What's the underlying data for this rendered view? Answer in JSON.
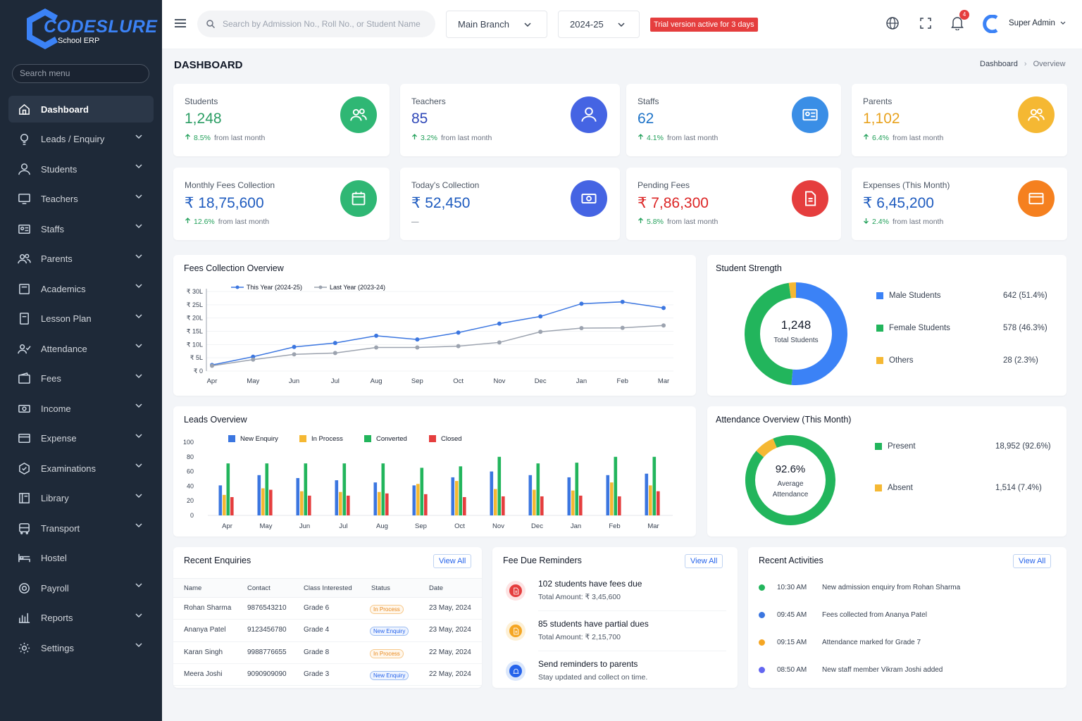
{
  "brand": {
    "name": "CODESLURE",
    "subtitle": "School ERP"
  },
  "sidebar": {
    "search_placeholder": "Search menu",
    "items": [
      {
        "label": "Dashboard",
        "icon": "home-icon",
        "active": true,
        "expandable": false
      },
      {
        "label": "Leads / Enquiry",
        "icon": "bulb-icon",
        "expandable": true
      },
      {
        "label": "Students",
        "icon": "user-icon",
        "expandable": true
      },
      {
        "label": "Teachers",
        "icon": "monitor-icon",
        "expandable": true
      },
      {
        "label": "Staffs",
        "icon": "id-card-icon",
        "expandable": true
      },
      {
        "label": "Parents",
        "icon": "users-icon",
        "expandable": true
      },
      {
        "label": "Academics",
        "icon": "book-icon",
        "expandable": true
      },
      {
        "label": "Lesson Plan",
        "icon": "notebook-icon",
        "expandable": true
      },
      {
        "label": "Attendance",
        "icon": "user-check-icon",
        "expandable": true
      },
      {
        "label": "Fees",
        "icon": "wallet-icon",
        "expandable": true
      },
      {
        "label": "Income",
        "icon": "cash-icon",
        "expandable": true
      },
      {
        "label": "Expense",
        "icon": "credit-card-icon",
        "expandable": true
      },
      {
        "label": "Examinations",
        "icon": "exam-icon",
        "expandable": true
      },
      {
        "label": "Library",
        "icon": "library-icon",
        "expandable": true
      },
      {
        "label": "Transport",
        "icon": "bus-icon",
        "expandable": true
      },
      {
        "label": "Hostel",
        "icon": "bed-icon",
        "expandable": false
      },
      {
        "label": "Payroll",
        "icon": "payroll-icon",
        "expandable": true
      },
      {
        "label": "Reports",
        "icon": "bar-chart-icon",
        "expandable": true
      },
      {
        "label": "Settings",
        "icon": "gear-icon",
        "expandable": true
      }
    ]
  },
  "topbar": {
    "search_placeholder": "Search by Admission No., Roll No., or Student Name",
    "branch": "Main Branch",
    "year": "2024-25",
    "trial": "Trial version active for 3 days",
    "notifications": "4",
    "user": "Super Admin"
  },
  "page": {
    "title": "DASHBOARD",
    "breadcrumb": [
      "Dashboard",
      "Overview"
    ]
  },
  "kpis": [
    {
      "label": "Students",
      "value": "1,248",
      "change": "8.5%",
      "change_text": "from last month",
      "dir": "up",
      "color": "#2a9d63",
      "circle": "#2fb774",
      "icon": "users-icon"
    },
    {
      "label": "Teachers",
      "value": "85",
      "change": "3.2%",
      "change_text": "from last month",
      "dir": "up",
      "color": "#2f48b8",
      "circle": "#4564e3",
      "icon": "user-icon"
    },
    {
      "label": "Staffs",
      "value": "62",
      "change": "4.1%",
      "change_text": "from last month",
      "dir": "up",
      "color": "#1e73c8",
      "circle": "#3a8ee6",
      "icon": "id-card-icon"
    },
    {
      "label": "Parents",
      "value": "1,102",
      "change": "6.4%",
      "change_text": "from last month",
      "dir": "up",
      "color": "#e8a21e",
      "circle": "#f5b833",
      "icon": "users-icon"
    },
    {
      "label": "Monthly Fees Collection",
      "value": "₹ 18,75,600",
      "change": "12.6%",
      "change_text": "from last month",
      "dir": "up",
      "color": "#1e5bbf",
      "circle": "#2fb774",
      "icon": "calendar-icon"
    },
    {
      "label": "Today's Collection",
      "value": "₹ 52,450",
      "change": "",
      "change_text": "—",
      "dir": "none",
      "color": "#1e5bbf",
      "circle": "#4564e3",
      "icon": "cash-icon"
    },
    {
      "label": "Pending Fees",
      "value": "₹ 7,86,300",
      "change": "5.8%",
      "change_text": "from last month",
      "dir": "up",
      "color": "#dc2626",
      "circle": "#e53e3e",
      "icon": "document-icon"
    },
    {
      "label": "Expenses (This Month)",
      "value": "₹ 6,45,200",
      "change": "2.4%",
      "change_text": "from last month",
      "dir": "down",
      "color": "#1e5bbf",
      "circle": "#f5801f",
      "icon": "credit-card-icon"
    }
  ],
  "fees_chart": {
    "title": "Fees Collection Overview",
    "chart_data": {
      "type": "line",
      "x": [
        "Apr",
        "May",
        "Jun",
        "Jul",
        "Aug",
        "Sep",
        "Oct",
        "Nov",
        "Dec",
        "Jan",
        "Feb",
        "Mar"
      ],
      "yticks": [
        "₹ 0",
        "₹ 5L",
        "₹ 10L",
        "₹ 15L",
        "₹ 20L",
        "₹ 25L",
        "₹ 30L"
      ],
      "ylim": [
        0,
        30
      ],
      "series": [
        {
          "name": "This Year (2024-25)",
          "color": "#3b76e0",
          "values": [
            2.3,
            5.4,
            9.1,
            10.6,
            13.3,
            11.9,
            14.5,
            17.9,
            20.6,
            25.4,
            26.1,
            23.8
          ]
        },
        {
          "name": "Last Year (2023-24)",
          "color": "#9ca3af",
          "values": [
            2.0,
            4.3,
            6.3,
            6.8,
            8.9,
            8.9,
            9.4,
            10.8,
            14.8,
            16.2,
            16.3,
            17.2
          ]
        }
      ]
    }
  },
  "strength": {
    "title": "Student Strength",
    "total": "1,248",
    "total_label": "Total Students",
    "chart_data": {
      "type": "pie",
      "labels": [
        "Male Students",
        "Female Students",
        "Others"
      ],
      "values": [
        642,
        578,
        28
      ],
      "display": [
        "642 (51.4%)",
        "578 (46.3%)",
        "28 (2.3%)"
      ],
      "colors": [
        "#3b82f6",
        "#22b55c",
        "#f5b833"
      ]
    }
  },
  "leads": {
    "title": "Leads Overview",
    "chart_data": {
      "type": "bar",
      "categories": [
        "Apr",
        "May",
        "Jun",
        "Jul",
        "Aug",
        "Sep",
        "Oct",
        "Nov",
        "Dec",
        "Jan",
        "Feb",
        "Mar"
      ],
      "yticks": [
        "0",
        "20",
        "40",
        "60",
        "80",
        "100"
      ],
      "ylim": [
        0,
        100
      ],
      "series": [
        {
          "name": "New Enquiry",
          "color": "#3b76e0",
          "values": [
            41,
            55,
            51,
            48,
            45,
            41,
            52,
            60,
            55,
            52,
            55,
            57
          ]
        },
        {
          "name": "In Process",
          "color": "#f5b833",
          "values": [
            28,
            37,
            33,
            32,
            32,
            43,
            47,
            36,
            35,
            34,
            45,
            41
          ]
        },
        {
          "name": "Converted",
          "color": "#22b55c",
          "values": [
            71,
            71,
            71,
            71,
            71,
            65,
            67,
            80,
            71,
            72,
            80,
            80
          ]
        },
        {
          "name": "Closed",
          "color": "#e53e3e",
          "values": [
            25,
            35,
            27,
            27,
            30,
            29,
            25,
            26,
            26,
            27,
            26,
            33
          ]
        }
      ]
    }
  },
  "attendance": {
    "title": "Attendance Overview (This Month)",
    "percent": "92.6%",
    "percent_label": "Average Attendance",
    "chart_data": {
      "type": "pie",
      "labels": [
        "Present",
        "Absent"
      ],
      "values": [
        18952,
        1514
      ],
      "display": [
        "18,952 (92.6%)",
        "1,514 (7.4%)"
      ],
      "colors": [
        "#22b55c",
        "#f5b833"
      ]
    }
  },
  "enquiries": {
    "title": "Recent Enquiries",
    "view_all": "View All",
    "columns": [
      "Name",
      "Contact",
      "Class Interested",
      "Status",
      "Date"
    ],
    "rows": [
      {
        "name": "Rohan Sharma",
        "contact": "9876543210",
        "class": "Grade 6",
        "status": "In Process",
        "date": "23 May, 2024"
      },
      {
        "name": "Ananya Patel",
        "contact": "9123456780",
        "class": "Grade 4",
        "status": "New Enquiry",
        "date": "23 May, 2024"
      },
      {
        "name": "Karan Singh",
        "contact": "9988776655",
        "class": "Grade 8",
        "status": "In Process",
        "date": "22 May, 2024"
      },
      {
        "name": "Meera Joshi",
        "contact": "9090909090",
        "class": "Grade 3",
        "status": "New Enquiry",
        "date": "22 May, 2024"
      }
    ]
  },
  "reminders": {
    "title": "Fee Due Reminders",
    "view_all": "View All",
    "items": [
      {
        "title": "102 students have fees due",
        "sub": "Total Amount: ₹ 3,45,600",
        "color": "#e53e3e",
        "bg": "#fde3e3",
        "icon": "document-icon"
      },
      {
        "title": "85 students have partial dues",
        "sub": "Total Amount: ₹ 2,15,700",
        "color": "#f5a623",
        "bg": "#fdf0d5",
        "icon": "document-icon"
      },
      {
        "title": "Send reminders to parents",
        "sub": "Stay updated and collect on time.",
        "color": "#2563eb",
        "bg": "#dbe7fb",
        "icon": "bell-icon"
      }
    ]
  },
  "activities": {
    "title": "Recent Activities",
    "view_all": "View All",
    "items": [
      {
        "time": "10:30 AM",
        "text": "New admission enquiry from Rohan Sharma",
        "color": "#22b55c"
      },
      {
        "time": "09:45 AM",
        "text": "Fees collected from Ananya Patel",
        "color": "#3b76e0"
      },
      {
        "time": "09:15 AM",
        "text": "Attendance marked for Grade 7",
        "color": "#f5a623"
      },
      {
        "time": "08:50 AM",
        "text": "New staff member Vikram Joshi added",
        "color": "#6366f1"
      }
    ]
  }
}
